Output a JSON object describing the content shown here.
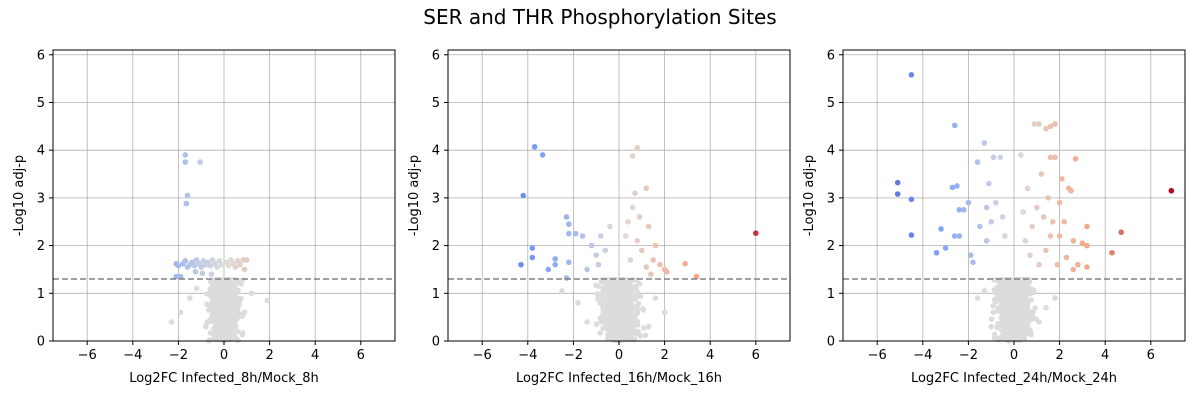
{
  "figure": {
    "title": "SER and THR Phosphorylation Sites"
  },
  "colors": {
    "nonsignificant": "#dcdcdc",
    "threshold_line": "#808080",
    "colormap": "coolwarm",
    "grid": "#b0b0b0"
  },
  "chart_data": [
    {
      "type": "scatter",
      "title": "",
      "xlabel": "Log2FC Infected_8h/Mock_8h",
      "ylabel": "-Log10 adj-p",
      "xlim": [
        -7.5,
        7.5
      ],
      "ylim": [
        0,
        6.1
      ],
      "xticks": [
        -6,
        -4,
        -2,
        0,
        2,
        4,
        6
      ],
      "yticks": [
        0,
        1,
        2,
        3,
        4,
        5,
        6
      ],
      "grid": true,
      "threshold": 1.3,
      "color_range": [
        -7,
        7
      ],
      "significant_points": [
        [
          -1.7,
          3.9
        ],
        [
          -1.7,
          3.75
        ],
        [
          -1.05,
          3.75
        ],
        [
          -1.6,
          3.05
        ],
        [
          -1.65,
          2.88
        ],
        [
          -2.1,
          1.62
        ],
        [
          -2.0,
          1.58
        ],
        [
          -2.1,
          1.35
        ],
        [
          -1.9,
          1.35
        ],
        [
          -1.8,
          1.62
        ],
        [
          -1.7,
          1.68
        ],
        [
          -1.6,
          1.55
        ],
        [
          -1.5,
          1.6
        ],
        [
          -1.4,
          1.65
        ],
        [
          -1.3,
          1.58
        ],
        [
          -1.2,
          1.7
        ],
        [
          -1.1,
          1.62
        ],
        [
          -1.0,
          1.55
        ],
        [
          -0.9,
          1.68
        ],
        [
          -0.8,
          1.6
        ],
        [
          -0.7,
          1.65
        ],
        [
          -0.6,
          1.58
        ],
        [
          -0.5,
          1.7
        ],
        [
          -0.4,
          1.62
        ],
        [
          -0.3,
          1.55
        ],
        [
          -0.2,
          1.68
        ],
        [
          -0.1,
          1.6
        ],
        [
          0.1,
          1.65
        ],
        [
          0.2,
          1.58
        ],
        [
          0.3,
          1.7
        ],
        [
          0.4,
          1.62
        ],
        [
          0.5,
          1.55
        ],
        [
          0.6,
          1.68
        ],
        [
          0.7,
          1.6
        ],
        [
          0.85,
          1.7
        ],
        [
          1.0,
          1.7
        ],
        [
          0.9,
          1.5
        ],
        [
          -1.25,
          1.45
        ],
        [
          -0.95,
          1.42
        ],
        [
          -0.55,
          1.4
        ]
      ],
      "background_points": [
        [
          -2.3,
          0.4
        ],
        [
          -1.9,
          0.6
        ],
        [
          1.9,
          0.85
        ],
        [
          -1.5,
          0.9
        ],
        [
          -1.2,
          1.1
        ],
        [
          1.2,
          1.0
        ],
        [
          0.9,
          0.6
        ],
        [
          -0.8,
          0.3
        ],
        [
          0.6,
          0.2
        ],
        [
          -0.3,
          0.7
        ]
      ],
      "dense_nonsignificant": {
        "x_spread": 0.55,
        "y_max": 1.28,
        "count": 650
      }
    },
    {
      "type": "scatter",
      "title": "",
      "xlabel": "Log2FC Infected_16h/Mock_16h",
      "ylabel": "-Log10 adj-p",
      "xlim": [
        -7.5,
        7.5
      ],
      "ylim": [
        0,
        6.1
      ],
      "xticks": [
        -6,
        -4,
        -2,
        0,
        2,
        4,
        6
      ],
      "yticks": [
        0,
        1,
        2,
        3,
        4,
        5,
        6
      ],
      "grid": true,
      "threshold": 1.3,
      "color_range": [
        -7,
        7
      ],
      "significant_points": [
        [
          -3.7,
          4.07
        ],
        [
          -3.35,
          3.9
        ],
        [
          0.8,
          4.05
        ],
        [
          0.6,
          3.88
        ],
        [
          -4.2,
          3.05
        ],
        [
          1.2,
          3.2
        ],
        [
          0.7,
          3.1
        ],
        [
          6.0,
          2.26
        ],
        [
          -2.3,
          2.6
        ],
        [
          -2.2,
          2.45
        ],
        [
          -1.9,
          2.25
        ],
        [
          -2.2,
          2.25
        ],
        [
          -1.6,
          2.2
        ],
        [
          -3.8,
          1.95
        ],
        [
          -3.8,
          1.75
        ],
        [
          -4.3,
          1.6
        ],
        [
          -3.1,
          1.5
        ],
        [
          -2.8,
          1.72
        ],
        [
          -2.8,
          1.6
        ],
        [
          -2.2,
          1.65
        ],
        [
          -2.3,
          1.32
        ],
        [
          2.9,
          1.62
        ],
        [
          3.4,
          1.35
        ],
        [
          2.1,
          1.45
        ],
        [
          1.8,
          1.6
        ],
        [
          2.0,
          1.5
        ],
        [
          1.4,
          1.4
        ],
        [
          1.2,
          1.55
        ],
        [
          0.9,
          2.6
        ],
        [
          0.6,
          2.8
        ],
        [
          0.4,
          2.5
        ],
        [
          -0.4,
          2.4
        ],
        [
          -0.8,
          2.2
        ],
        [
          -1.2,
          2.0
        ],
        [
          -1.0,
          1.8
        ],
        [
          -0.6,
          1.9
        ],
        [
          0.3,
          2.2
        ],
        [
          0.8,
          2.1
        ],
        [
          1.0,
          1.9
        ],
        [
          1.5,
          1.7
        ],
        [
          -1.4,
          1.5
        ],
        [
          -0.9,
          1.6
        ],
        [
          0.5,
          1.7
        ],
        [
          1.3,
          2.4
        ],
        [
          1.6,
          2.0
        ]
      ],
      "background_points": [
        [
          -2.5,
          1.05
        ],
        [
          -1.8,
          0.8
        ],
        [
          1.6,
          0.9
        ],
        [
          2.0,
          0.6
        ],
        [
          -1.4,
          0.4
        ],
        [
          1.3,
          0.3
        ],
        [
          -0.9,
          1.15
        ],
        [
          0.9,
          1.2
        ]
      ],
      "dense_nonsignificant": {
        "x_spread": 0.7,
        "y_max": 1.28,
        "count": 750
      }
    },
    {
      "type": "scatter",
      "title": "",
      "xlabel": "Log2FC Infected_24h/Mock_24h",
      "ylabel": "-Log10 adj-p",
      "xlim": [
        -7.5,
        7.5
      ],
      "ylim": [
        0,
        6.1
      ],
      "xticks": [
        -6,
        -4,
        -2,
        0,
        2,
        4,
        6
      ],
      "yticks": [
        0,
        1,
        2,
        3,
        4,
        5,
        6
      ],
      "grid": true,
      "threshold": 1.3,
      "color_range": [
        -7,
        7
      ],
      "significant_points": [
        [
          -4.5,
          5.58
        ],
        [
          -2.6,
          4.52
        ],
        [
          -5.1,
          3.32
        ],
        [
          -5.1,
          3.08
        ],
        [
          -4.5,
          2.97
        ],
        [
          -4.5,
          2.22
        ],
        [
          -2.7,
          3.22
        ],
        [
          -2.5,
          3.25
        ],
        [
          -1.6,
          3.75
        ],
        [
          -3.2,
          2.35
        ],
        [
          -3.4,
          1.85
        ],
        [
          -3.0,
          1.95
        ],
        [
          -2.6,
          2.2
        ],
        [
          -2.4,
          2.2
        ],
        [
          -2.2,
          2.75
        ],
        [
          -2.4,
          2.75
        ],
        [
          -2.0,
          2.9
        ],
        [
          -1.9,
          1.8
        ],
        [
          -1.8,
          1.65
        ],
        [
          -1.3,
          4.15
        ],
        [
          -0.9,
          3.85
        ],
        [
          -0.6,
          3.85
        ],
        [
          -1.1,
          3.3
        ],
        [
          -1.2,
          2.8
        ],
        [
          -1.5,
          2.4
        ],
        [
          -1.2,
          2.1
        ],
        [
          -1.0,
          2.5
        ],
        [
          -0.8,
          2.9
        ],
        [
          -0.5,
          2.6
        ],
        [
          -0.4,
          2.2
        ],
        [
          1.1,
          4.55
        ],
        [
          0.9,
          4.55
        ],
        [
          1.6,
          4.5
        ],
        [
          1.8,
          4.55
        ],
        [
          1.4,
          4.45
        ],
        [
          1.6,
          3.85
        ],
        [
          1.8,
          3.85
        ],
        [
          2.1,
          3.4
        ],
        [
          2.4,
          3.2
        ],
        [
          2.7,
          3.82
        ],
        [
          2.5,
          3.15
        ],
        [
          3.2,
          2.4
        ],
        [
          3.0,
          2.05
        ],
        [
          3.2,
          2.0
        ],
        [
          3.2,
          1.55
        ],
        [
          2.8,
          1.6
        ],
        [
          4.7,
          2.28
        ],
        [
          4.3,
          1.85
        ],
        [
          6.9,
          3.15
        ],
        [
          2.6,
          1.5
        ],
        [
          2.3,
          1.75
        ],
        [
          2.0,
          2.2
        ],
        [
          1.7,
          2.5
        ],
        [
          1.5,
          3.0
        ],
        [
          1.2,
          3.5
        ],
        [
          1.0,
          2.8
        ],
        [
          0.8,
          2.4
        ],
        [
          0.6,
          3.2
        ],
        [
          0.4,
          2.7
        ],
        [
          0.3,
          3.9
        ],
        [
          1.4,
          1.9
        ],
        [
          1.9,
          1.6
        ],
        [
          2.2,
          2.5
        ],
        [
          2.6,
          2.1
        ],
        [
          0.7,
          1.8
        ],
        [
          1.1,
          1.6
        ],
        [
          1.6,
          2.2
        ],
        [
          0.5,
          2.1
        ],
        [
          2.0,
          2.9
        ],
        [
          1.3,
          2.6
        ]
      ],
      "background_points": [
        [
          -1.0,
          0.3
        ],
        [
          -1.6,
          0.9
        ],
        [
          1.4,
          0.7
        ],
        [
          1.8,
          0.9
        ],
        [
          -1.3,
          1.05
        ],
        [
          1.1,
          0.4
        ],
        [
          -0.6,
          1.1
        ]
      ],
      "dense_nonsignificant": {
        "x_spread": 0.65,
        "y_max": 1.28,
        "count": 750
      }
    }
  ]
}
